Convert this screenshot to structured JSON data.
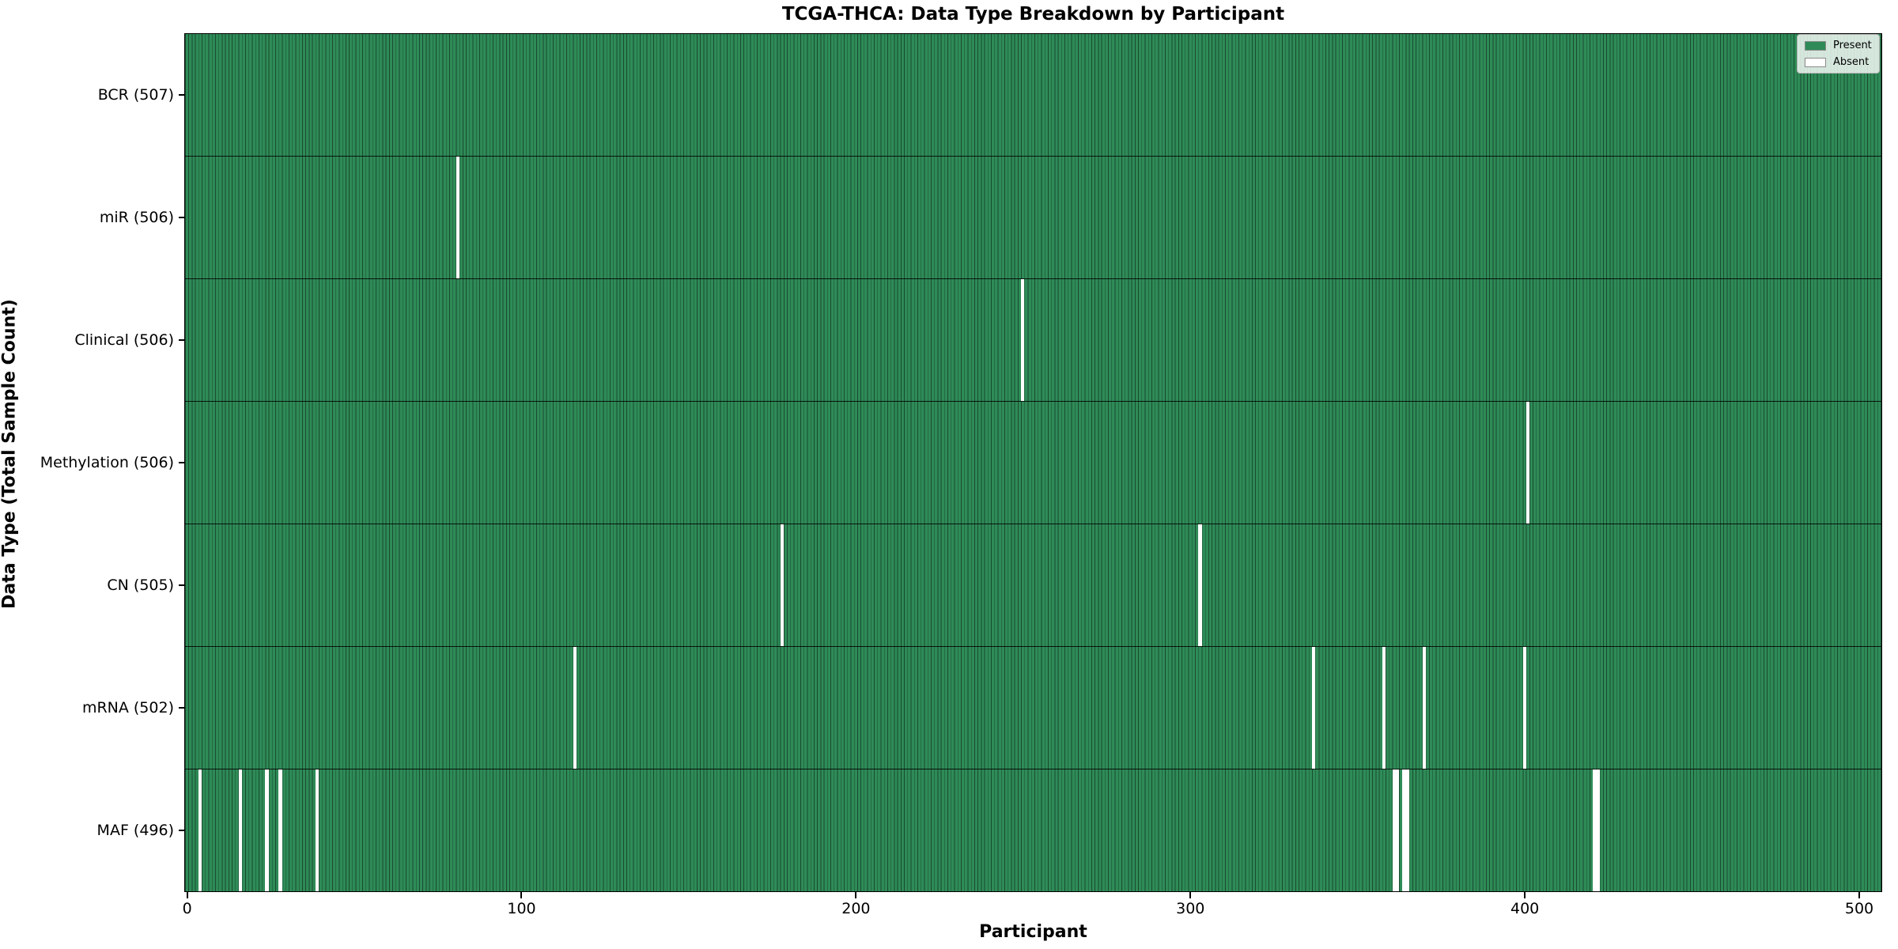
{
  "chart_data": {
    "type": "heatmap",
    "title": "TCGA-THCA: Data Type Breakdown by Participant",
    "xlabel": "Participant",
    "ylabel": "Data Type (Total Sample Count)",
    "n_participants": 507,
    "xlim": [
      -0.5,
      506.5
    ],
    "x_ticks": [
      0,
      100,
      200,
      300,
      400,
      500
    ],
    "grid": false,
    "legend_position": "upper right",
    "legend": [
      {
        "label": "Present",
        "color": "#2e8b57"
      },
      {
        "label": "Absent",
        "color": "#ffffff"
      }
    ],
    "colors": {
      "present": "#2e8b57",
      "absent": "#ffffff",
      "bar_edge": "#1b4a30",
      "row_separator": "#000000",
      "axis": "#000000"
    },
    "rows": [
      {
        "label": "BCR",
        "total": 507,
        "tick_label": "BCR (507)",
        "absent_participants": []
      },
      {
        "label": "miR",
        "total": 506,
        "tick_label": "miR (506)",
        "absent_participants": [
          81
        ]
      },
      {
        "label": "Clinical",
        "total": 506,
        "tick_label": "Clinical (506)",
        "absent_participants": [
          250
        ]
      },
      {
        "label": "Methylation",
        "total": 506,
        "tick_label": "Methylation (506)",
        "absent_participants": [
          401
        ]
      },
      {
        "label": "CN",
        "total": 505,
        "tick_label": "CN (505)",
        "absent_participants": [
          178,
          303
        ]
      },
      {
        "label": "mRNA",
        "total": 502,
        "tick_label": "mRNA (502)",
        "absent_participants": [
          116,
          337,
          358,
          370,
          400
        ]
      },
      {
        "label": "MAF",
        "total": 496,
        "tick_label": "MAF (496)",
        "absent_participants": [
          4,
          16,
          24,
          28,
          39,
          361,
          362,
          364,
          365,
          421,
          422
        ]
      }
    ]
  }
}
